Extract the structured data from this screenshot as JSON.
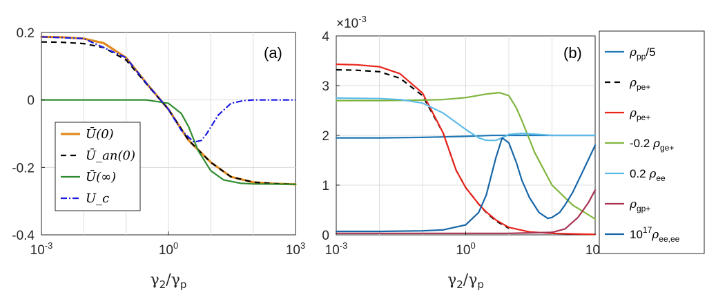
{
  "chart_data": [
    {
      "panel_label": "(a)",
      "type": "line",
      "xscale": "log",
      "xlim": [
        0.001,
        1000
      ],
      "ylim": [
        -0.4,
        0.2
      ],
      "xticks": [
        {
          "value": 0.001,
          "base": "10",
          "exp": "-3"
        },
        {
          "value": 1,
          "base": "10",
          "exp": "0"
        },
        {
          "value": 1000,
          "base": "10",
          "exp": "3"
        }
      ],
      "yticks": [
        {
          "value": 0.2,
          "label": "0.2"
        },
        {
          "value": 0,
          "label": "0"
        },
        {
          "value": -0.2,
          "label": "-0.2"
        },
        {
          "value": -0.4,
          "label": "-0.4"
        }
      ],
      "grid": true,
      "xlabel": {
        "main": "γ",
        "sub1": "2",
        "slash": "/γ",
        "sub2": "p"
      },
      "legend_position": "bottom-left",
      "series": [
        {
          "name": "Ū(0)",
          "color": "#E08A1E",
          "dash": "solid",
          "x": [
            0.001,
            0.003,
            0.01,
            0.03,
            0.1,
            0.3,
            1,
            3,
            10,
            30,
            100,
            300,
            1000
          ],
          "y": [
            0.187,
            0.186,
            0.182,
            0.168,
            0.125,
            0.05,
            -0.028,
            -0.12,
            -0.185,
            -0.228,
            -0.244,
            -0.248,
            -0.25
          ]
        },
        {
          "name": "Ū_an(0)",
          "color": "#000000",
          "dash": "8,6",
          "x": [
            0.001,
            0.003,
            0.01,
            0.03,
            0.1,
            0.3,
            1,
            3,
            10,
            30,
            100,
            300,
            1000
          ],
          "y": [
            0.172,
            0.171,
            0.167,
            0.155,
            0.118,
            0.048,
            -0.028,
            -0.12,
            -0.185,
            -0.228,
            -0.244,
            -0.248,
            -0.25
          ]
        },
        {
          "name": "Ū(∞)",
          "color": "#2E8B2E",
          "dash": "solid",
          "x": [
            0.001,
            0.01,
            0.1,
            0.3,
            1,
            2,
            3,
            5,
            10,
            20,
            50,
            100,
            1000
          ],
          "y": [
            0,
            0,
            0,
            0,
            -0.01,
            -0.04,
            -0.08,
            -0.15,
            -0.21,
            -0.237,
            -0.247,
            -0.249,
            -0.25
          ]
        },
        {
          "name": "U_c",
          "color": "#1A1AE6",
          "dash": "9,3,2,3",
          "x": [
            0.001,
            0.01,
            0.1,
            0.3,
            1,
            2,
            4,
            6,
            8,
            15,
            30,
            60,
            100,
            1000
          ],
          "y": [
            0.187,
            0.182,
            0.125,
            0.05,
            -0.028,
            -0.09,
            -0.125,
            -0.12,
            -0.1,
            -0.045,
            -0.01,
            -0.002,
            0,
            0
          ]
        }
      ]
    },
    {
      "panel_label": "(b)",
      "type": "line",
      "xscale": "log",
      "xlim": [
        0.001,
        1000
      ],
      "ylim": [
        0,
        4
      ],
      "y_multiplier": {
        "base": "×10",
        "exp": "-3"
      },
      "xticks": [
        {
          "value": 0.001,
          "base": "10",
          "exp": "-3"
        },
        {
          "value": 1,
          "base": "10",
          "exp": "0"
        },
        {
          "value": 1000,
          "base": "10",
          "exp": "3"
        }
      ],
      "yticks": [
        {
          "value": 0,
          "label": "0"
        },
        {
          "value": 1,
          "label": "1"
        },
        {
          "value": 2,
          "label": "2"
        },
        {
          "value": 3,
          "label": "3"
        },
        {
          "value": 4,
          "label": "4"
        }
      ],
      "grid": true,
      "xlabel": {
        "main": "γ",
        "sub1": "2",
        "slash": "/γ",
        "sub2": "p"
      },
      "legend_position": "outside-right",
      "series": [
        {
          "legend": {
            "pre": "",
            "sym": "ρ",
            "sub": "pp",
            "post": "/5",
            "supPre": ""
          },
          "color": "#1F77B4",
          "dash": "solid",
          "x": [
            0.001,
            0.01,
            0.1,
            0.3,
            1,
            2,
            4,
            7,
            10,
            30,
            100,
            1000
          ],
          "y": [
            1.95,
            1.95,
            1.96,
            1.97,
            1.98,
            1.99,
            2,
            2,
            2,
            2,
            2,
            2
          ]
        },
        {
          "legend": {
            "pre": "",
            "sym": "ρ",
            "sub": "pe+",
            "post": "",
            "supPre": ""
          },
          "color": "#000000",
          "dash": "8,6",
          "x": [
            0.001,
            0.003,
            0.01,
            0.03,
            0.1,
            0.3,
            0.6,
            1,
            2,
            3,
            5,
            8,
            10
          ],
          "y": [
            3.32,
            3.31,
            3.28,
            3.15,
            2.8,
            2.05,
            1.3,
            0.95,
            0.62,
            0.45,
            0.28,
            0.18,
            0.13
          ]
        },
        {
          "legend": {
            "pre": "",
            "sym": "ρ",
            "sub": "pe+",
            "post": "",
            "supPre": ""
          },
          "color": "#E8241C",
          "dash": "solid",
          "x": [
            0.001,
            0.003,
            0.01,
            0.03,
            0.1,
            0.3,
            0.6,
            1,
            2,
            3,
            5,
            10,
            30,
            100,
            300,
            1000
          ],
          "y": [
            3.43,
            3.42,
            3.38,
            3.24,
            2.85,
            2.05,
            1.3,
            0.95,
            0.62,
            0.46,
            0.3,
            0.15,
            0.06,
            0.03,
            0.02,
            0.01
          ]
        },
        {
          "legend": {
            "pre": "-0.2 ",
            "sym": "ρ",
            "sub": "ge+",
            "post": "",
            "supPre": ""
          },
          "color": "#7FB53D",
          "dash": "solid",
          "x": [
            0.001,
            0.01,
            0.1,
            0.3,
            1,
            3,
            6,
            10,
            15,
            20,
            40,
            100,
            300,
            1000
          ],
          "y": [
            2.7,
            2.7,
            2.71,
            2.72,
            2.76,
            2.83,
            2.86,
            2.8,
            2.55,
            2.3,
            1.65,
            1.0,
            0.6,
            0.32
          ]
        },
        {
          "legend": {
            "pre": "0.2 ",
            "sym": "ρ",
            "sub": "ee",
            "post": "",
            "supPre": ""
          },
          "color": "#5DBBE8",
          "dash": "solid",
          "x": [
            0.001,
            0.01,
            0.03,
            0.1,
            0.3,
            1,
            2,
            3,
            5,
            7,
            10,
            20,
            50,
            100,
            1000
          ],
          "y": [
            2.75,
            2.74,
            2.72,
            2.65,
            2.45,
            2.12,
            1.95,
            1.9,
            1.9,
            1.95,
            2.02,
            2.04,
            2.02,
            2.0,
            2.0
          ]
        },
        {
          "legend": {
            "pre": "",
            "sym": "ρ",
            "sub": "gp+",
            "post": "",
            "supPre": ""
          },
          "color": "#A83250",
          "dash": "solid",
          "x": [
            0.001,
            0.01,
            0.1,
            1,
            10,
            100,
            200,
            400,
            700,
            1000
          ],
          "y": [
            0.03,
            0.03,
            0.03,
            0.03,
            0.03,
            0.05,
            0.12,
            0.35,
            0.65,
            0.9
          ]
        },
        {
          "legend": {
            "pre": "10",
            "sym": "ρ",
            "sub": "ee,ee",
            "post": "",
            "supPre": "17"
          },
          "color": "#1565A8",
          "dash": "solid",
          "x": [
            0.001,
            0.01,
            0.1,
            0.3,
            1,
            2,
            3,
            5,
            7,
            10,
            15,
            20,
            30,
            50,
            80,
            100,
            150,
            200,
            300,
            500,
            1000
          ],
          "y": [
            0.07,
            0.07,
            0.08,
            0.1,
            0.2,
            0.45,
            0.8,
            1.55,
            1.95,
            1.85,
            1.45,
            1.1,
            0.75,
            0.45,
            0.33,
            0.35,
            0.45,
            0.6,
            0.85,
            1.25,
            1.8
          ]
        }
      ]
    }
  ]
}
